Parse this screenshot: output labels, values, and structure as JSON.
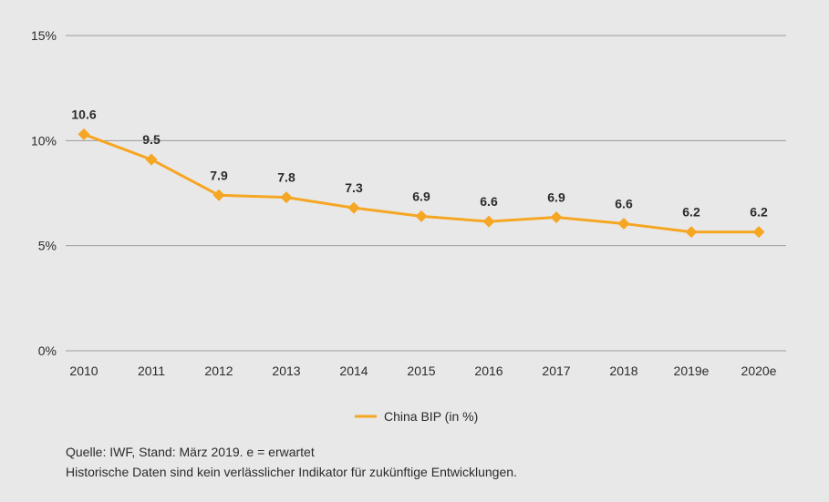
{
  "chart_data": {
    "type": "line",
    "title": "",
    "xlabel": "",
    "ylabel": "",
    "categories": [
      "2010",
      "2011",
      "2012",
      "2013",
      "2014",
      "2015",
      "2016",
      "2017",
      "2018",
      "2019e",
      "2020e"
    ],
    "series": [
      {
        "name": "China BIP (in %)",
        "values": [
          10.6,
          9.5,
          7.9,
          7.8,
          7.3,
          6.9,
          6.6,
          6.9,
          6.6,
          6.2,
          6.2
        ],
        "labels": [
          "10.6",
          "9.5",
          "7.9",
          "7.8",
          "7.3",
          "6.9",
          "6.6",
          "6.9",
          "6.6",
          "6.2",
          "6.2"
        ],
        "plotted_values": [
          10.3,
          9.1,
          7.4,
          7.3,
          6.8,
          6.4,
          6.15,
          6.35,
          6.05,
          5.65,
          5.65
        ],
        "color": "#f5a623"
      }
    ],
    "ylim": [
      0,
      15
    ],
    "yticks": [
      0,
      5,
      10,
      15
    ],
    "ytick_labels": [
      "0%",
      "5%",
      "10%",
      "15%"
    ],
    "grid": true,
    "legend": "bottom-center"
  },
  "footnotes": [
    "Quelle: IWF, Stand: März 2019. e = erwartet",
    "Historische Daten sind kein verlässlicher Indikator für zukünftige Entwicklungen."
  ],
  "colors": {
    "background": "#e9e8e8",
    "grid": "#9b9b9b",
    "line": "#f5a623",
    "text": "#2b2b2b"
  }
}
